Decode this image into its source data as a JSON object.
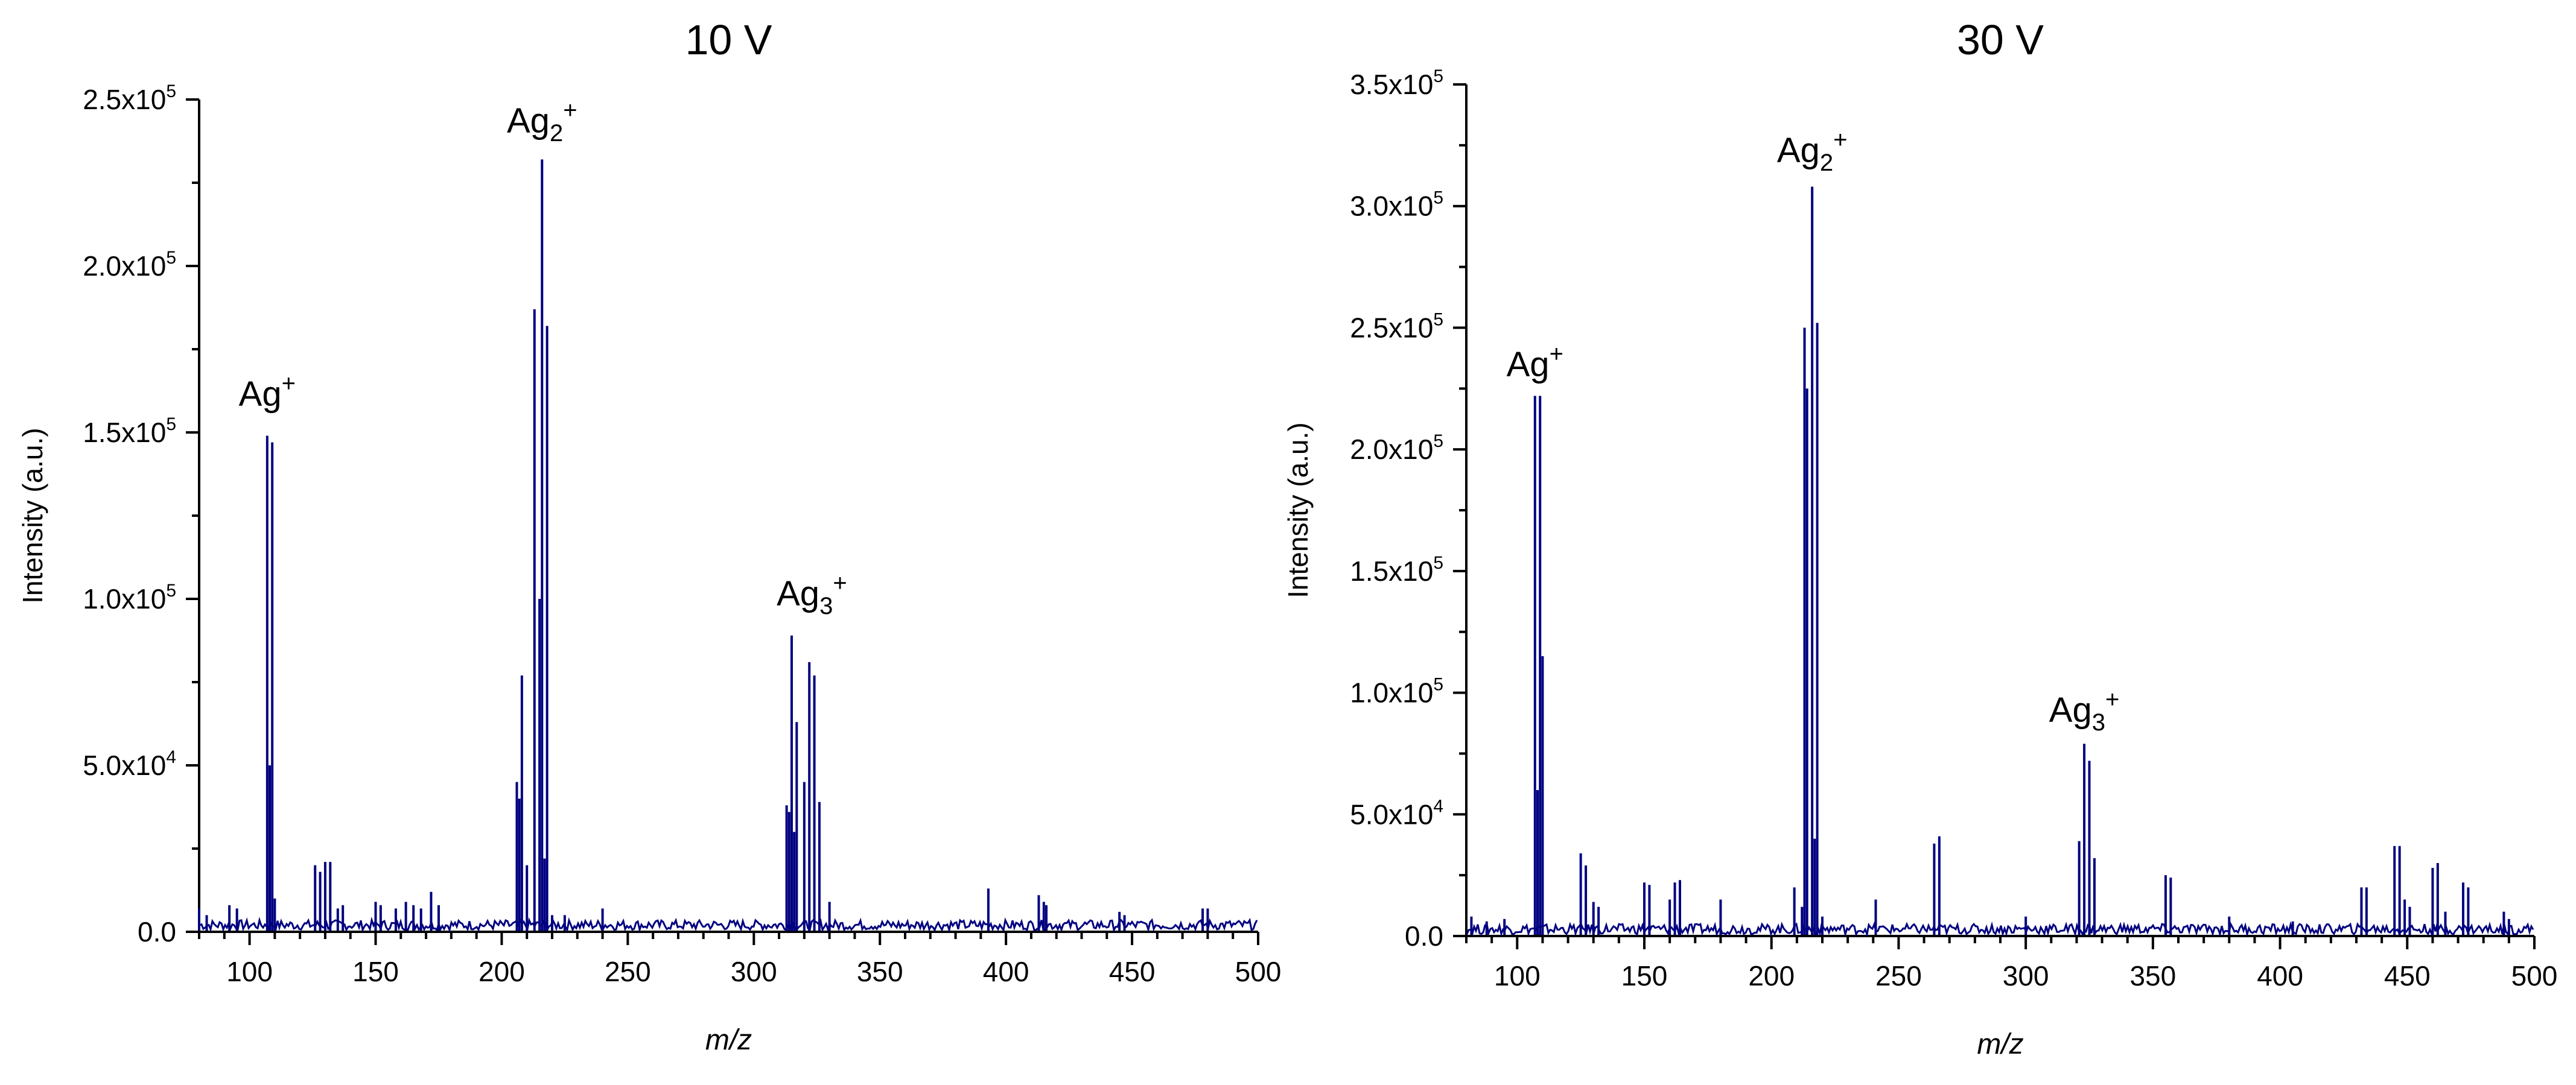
{
  "chart_data": [
    {
      "type": "line",
      "title": "10 V",
      "xlabel": "m/z",
      "ylabel": "Intensity (a.u.)",
      "xlim": [
        80,
        500
      ],
      "ylim": [
        0,
        250000
      ],
      "grid": false,
      "line_color": "#000080",
      "x_ticks": [
        100,
        150,
        200,
        250,
        300,
        350,
        400,
        450,
        500
      ],
      "x_tick_labels": [
        "100",
        "150",
        "200",
        "250",
        "300",
        "350",
        "400",
        "450",
        "500"
      ],
      "y_ticks": [
        0,
        50000,
        100000,
        150000,
        200000,
        250000
      ],
      "y_tick_labels": [
        {
          "mantissa": "0.0",
          "exp": ""
        },
        {
          "mantissa": "5.0x10",
          "exp": "4"
        },
        {
          "mantissa": "1.0x10",
          "exp": "5"
        },
        {
          "mantissa": "1.5x10",
          "exp": "5"
        },
        {
          "mantissa": "2.0x10",
          "exp": "5"
        },
        {
          "mantissa": "2.5x10",
          "exp": "5"
        }
      ],
      "annotations": [
        {
          "base": "Ag",
          "sub": "",
          "sup": "+",
          "x": 107,
          "y": 158000
        },
        {
          "base": "Ag",
          "sub": "2",
          "sup": "+",
          "x": 216,
          "y": 240000
        },
        {
          "base": "Ag",
          "sub": "3",
          "sup": "+",
          "x": 323,
          "y": 98000
        }
      ],
      "peaks": [
        {
          "x": 80,
          "y": 7000
        },
        {
          "x": 83,
          "y": 5000
        },
        {
          "x": 92,
          "y": 8000
        },
        {
          "x": 95,
          "y": 7000
        },
        {
          "x": 107,
          "y": 149000
        },
        {
          "x": 108,
          "y": 50000
        },
        {
          "x": 109,
          "y": 147000
        },
        {
          "x": 110,
          "y": 10000
        },
        {
          "x": 126,
          "y": 20000
        },
        {
          "x": 128,
          "y": 18000
        },
        {
          "x": 130,
          "y": 21000
        },
        {
          "x": 132,
          "y": 21000
        },
        {
          "x": 135,
          "y": 7000
        },
        {
          "x": 137,
          "y": 8000
        },
        {
          "x": 150,
          "y": 9000
        },
        {
          "x": 152,
          "y": 8000
        },
        {
          "x": 158,
          "y": 7000
        },
        {
          "x": 162,
          "y": 9000
        },
        {
          "x": 165,
          "y": 8000
        },
        {
          "x": 168,
          "y": 7000
        },
        {
          "x": 172,
          "y": 12000
        },
        {
          "x": 175,
          "y": 8000
        },
        {
          "x": 206,
          "y": 45000
        },
        {
          "x": 207,
          "y": 40000
        },
        {
          "x": 208,
          "y": 77000
        },
        {
          "x": 210,
          "y": 20000
        },
        {
          "x": 213,
          "y": 187000
        },
        {
          "x": 215,
          "y": 100000
        },
        {
          "x": 216,
          "y": 232000
        },
        {
          "x": 217,
          "y": 22000
        },
        {
          "x": 218,
          "y": 182000
        },
        {
          "x": 220,
          "y": 5000
        },
        {
          "x": 225,
          "y": 5000
        },
        {
          "x": 240,
          "y": 7000
        },
        {
          "x": 313,
          "y": 38000
        },
        {
          "x": 314,
          "y": 36000
        },
        {
          "x": 315,
          "y": 89000
        },
        {
          "x": 316,
          "y": 30000
        },
        {
          "x": 317,
          "y": 63000
        },
        {
          "x": 320,
          "y": 45000
        },
        {
          "x": 322,
          "y": 81000
        },
        {
          "x": 324,
          "y": 77000
        },
        {
          "x": 326,
          "y": 39000
        },
        {
          "x": 330,
          "y": 9000
        },
        {
          "x": 393,
          "y": 13000
        },
        {
          "x": 413,
          "y": 11000
        },
        {
          "x": 415,
          "y": 9000
        },
        {
          "x": 416,
          "y": 8000
        },
        {
          "x": 445,
          "y": 6000
        },
        {
          "x": 447,
          "y": 5000
        },
        {
          "x": 478,
          "y": 7000
        },
        {
          "x": 480,
          "y": 7000
        }
      ]
    },
    {
      "type": "line",
      "title": "30 V",
      "xlabel": "m/z",
      "ylabel": "Intensity (a.u.)",
      "xlim": [
        80,
        500
      ],
      "ylim": [
        0,
        350000
      ],
      "grid": false,
      "line_color": "#000080",
      "x_ticks": [
        100,
        150,
        200,
        250,
        300,
        350,
        400,
        450,
        500
      ],
      "x_tick_labels": [
        "100",
        "150",
        "200",
        "250",
        "300",
        "350",
        "400",
        "450",
        "500"
      ],
      "y_ticks": [
        0,
        50000,
        100000,
        150000,
        200000,
        250000,
        300000,
        350000
      ],
      "y_tick_labels": [
        {
          "mantissa": "0.0",
          "exp": ""
        },
        {
          "mantissa": "5.0x10",
          "exp": "4"
        },
        {
          "mantissa": "1.0x10",
          "exp": "5"
        },
        {
          "mantissa": "1.5x10",
          "exp": "5"
        },
        {
          "mantissa": "2.0x10",
          "exp": "5"
        },
        {
          "mantissa": "2.5x10",
          "exp": "5"
        },
        {
          "mantissa": "3.0x10",
          "exp": "5"
        },
        {
          "mantissa": "3.5x10",
          "exp": "5"
        }
      ],
      "annotations": [
        {
          "base": "Ag",
          "sub": "",
          "sup": "+",
          "x": 107,
          "y": 230000
        },
        {
          "base": "Ag",
          "sub": "2",
          "sup": "+",
          "x": 216,
          "y": 318000
        },
        {
          "base": "Ag",
          "sub": "3",
          "sup": "+",
          "x": 323,
          "y": 88000
        }
      ],
      "peaks": [
        {
          "x": 82,
          "y": 8000
        },
        {
          "x": 88,
          "y": 6000
        },
        {
          "x": 95,
          "y": 7000
        },
        {
          "x": 107,
          "y": 222000
        },
        {
          "x": 108,
          "y": 60000
        },
        {
          "x": 109,
          "y": 222000
        },
        {
          "x": 110,
          "y": 115000
        },
        {
          "x": 125,
          "y": 34000
        },
        {
          "x": 127,
          "y": 29000
        },
        {
          "x": 130,
          "y": 14000
        },
        {
          "x": 132,
          "y": 12000
        },
        {
          "x": 150,
          "y": 22000
        },
        {
          "x": 152,
          "y": 21000
        },
        {
          "x": 160,
          "y": 15000
        },
        {
          "x": 162,
          "y": 22000
        },
        {
          "x": 164,
          "y": 23000
        },
        {
          "x": 180,
          "y": 15000
        },
        {
          "x": 209,
          "y": 20000
        },
        {
          "x": 212,
          "y": 12000
        },
        {
          "x": 213,
          "y": 250000
        },
        {
          "x": 214,
          "y": 225000
        },
        {
          "x": 216,
          "y": 308000
        },
        {
          "x": 217,
          "y": 40000
        },
        {
          "x": 218,
          "y": 252000
        },
        {
          "x": 220,
          "y": 8000
        },
        {
          "x": 241,
          "y": 15000
        },
        {
          "x": 264,
          "y": 38000
        },
        {
          "x": 266,
          "y": 41000
        },
        {
          "x": 300,
          "y": 8000
        },
        {
          "x": 321,
          "y": 39000
        },
        {
          "x": 323,
          "y": 79000
        },
        {
          "x": 325,
          "y": 72000
        },
        {
          "x": 327,
          "y": 32000
        },
        {
          "x": 355,
          "y": 25000
        },
        {
          "x": 357,
          "y": 24000
        },
        {
          "x": 380,
          "y": 8000
        },
        {
          "x": 405,
          "y": 6000
        },
        {
          "x": 432,
          "y": 20000
        },
        {
          "x": 434,
          "y": 20000
        },
        {
          "x": 445,
          "y": 37000
        },
        {
          "x": 447,
          "y": 37000
        },
        {
          "x": 449,
          "y": 15000
        },
        {
          "x": 451,
          "y": 12000
        },
        {
          "x": 460,
          "y": 28000
        },
        {
          "x": 462,
          "y": 30000
        },
        {
          "x": 465,
          "y": 10000
        },
        {
          "x": 472,
          "y": 22000
        },
        {
          "x": 474,
          "y": 20000
        },
        {
          "x": 488,
          "y": 10000
        },
        {
          "x": 490,
          "y": 7000
        }
      ]
    }
  ]
}
